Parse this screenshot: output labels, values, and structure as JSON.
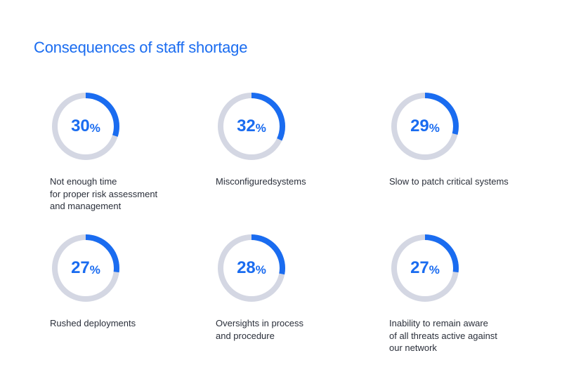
{
  "title": "Consequences of staff shortage",
  "colors": {
    "accent": "#1a6cf0",
    "track": "#d4d7e3",
    "text": "#2a2f3a"
  },
  "chart_data": {
    "type": "donut",
    "title": "Consequences of staff shortage",
    "unit": "%",
    "items": [
      {
        "value": 30,
        "display": "30",
        "label": "Not enough time\nfor proper risk assessment\nand management"
      },
      {
        "value": 32,
        "display": "32",
        "label": "Misconfiguredsystems"
      },
      {
        "value": 29,
        "display": "29",
        "label": "Slow to patch critical systems"
      },
      {
        "value": 27,
        "display": "27",
        "label": "Rushed deployments"
      },
      {
        "value": 28,
        "display": "28",
        "label": "Oversights in process\nand procedure"
      },
      {
        "value": 27,
        "display": "27",
        "label": "Inability to remain aware\nof all threats active against\nour network"
      }
    ]
  }
}
